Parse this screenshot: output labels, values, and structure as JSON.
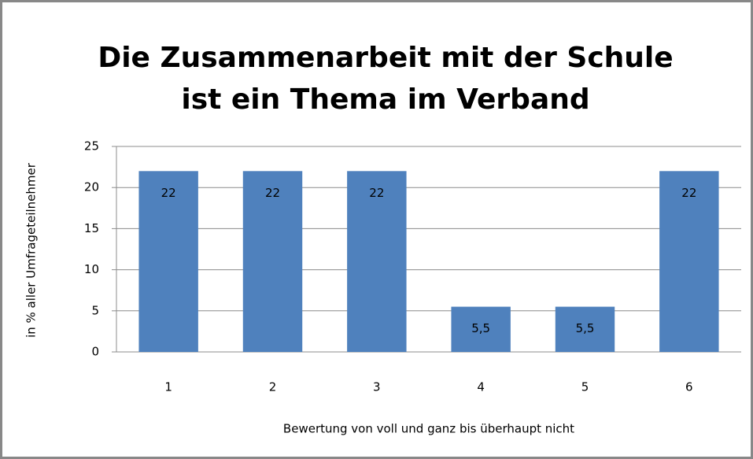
{
  "chart_data": {
    "type": "bar",
    "title": [
      "Die Zusammenarbeit mit der Schule",
      "ist ein Thema im Verband"
    ],
    "x_label": "Bewertung von voll und ganz bis überhaupt nicht",
    "y_label": "in % aller Umfrageteilnehmer",
    "categories": [
      "1",
      "2",
      "3",
      "4",
      "5",
      "6"
    ],
    "values": [
      22,
      22,
      22,
      5.5,
      5.5,
      22
    ],
    "value_labels": [
      "22",
      "22",
      "22",
      "5,5",
      "5,5",
      "22"
    ],
    "color": "#4f81bd",
    "ylim": [
      0,
      25
    ],
    "yticks": [
      0,
      5,
      10,
      15,
      20,
      25
    ],
    "grid": true
  }
}
